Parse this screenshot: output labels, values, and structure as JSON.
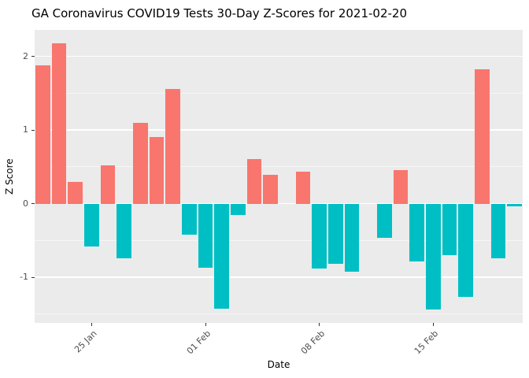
{
  "chart_data": {
    "type": "bar",
    "title": "GA Coronavirus COVID19 Tests 30-Day Z-Scores for 2021-02-20",
    "xlabel": "Date",
    "ylabel": "Z Score",
    "ylim": [
      -1.62,
      2.36
    ],
    "grid": true,
    "legend": "none",
    "y_major_ticks": [
      -1,
      0,
      1,
      2
    ],
    "y_tick_labels": [
      "-1",
      "0",
      "1",
      "2"
    ],
    "y_minor_ticks": [
      -1.5,
      -0.5,
      0.5,
      1.5
    ],
    "x_ticks": [
      {
        "label": "25 Jan",
        "index": 3
      },
      {
        "label": "01 Feb",
        "index": 10
      },
      {
        "label": "08 Feb",
        "index": 17
      },
      {
        "label": "15 Feb",
        "index": 24
      }
    ],
    "categories": [
      "2021-01-22",
      "2021-01-23",
      "2021-01-24",
      "2021-01-25",
      "2021-01-26",
      "2021-01-27",
      "2021-01-28",
      "2021-01-29",
      "2021-01-30",
      "2021-01-31",
      "2021-02-01",
      "2021-02-02",
      "2021-02-03",
      "2021-02-04",
      "2021-02-05",
      "2021-02-06",
      "2021-02-07",
      "2021-02-08",
      "2021-02-09",
      "2021-02-10",
      "2021-02-11",
      "2021-02-12",
      "2021-02-13",
      "2021-02-14",
      "2021-02-15",
      "2021-02-16",
      "2021-02-17",
      "2021-02-18",
      "2021-02-19",
      "2021-02-20"
    ],
    "values": [
      1.88,
      2.18,
      0.3,
      -0.58,
      0.52,
      -0.74,
      1.1,
      0.91,
      1.56,
      -0.42,
      -0.87,
      -1.43,
      -0.15,
      0.61,
      0.39,
      0.0,
      0.43,
      -0.88,
      -0.82,
      -0.92,
      0.0,
      -0.46,
      0.46,
      -0.79,
      -1.44,
      -0.7,
      -1.27,
      1.82,
      -0.74,
      -0.04
    ],
    "colors": {
      "positive": "#F8766D",
      "negative": "#00BFC4",
      "panel_background": "#EBEBEB",
      "gridline": "#FFFFFF",
      "tick_text": "#4D4D4D",
      "title_text": "#000000"
    }
  }
}
